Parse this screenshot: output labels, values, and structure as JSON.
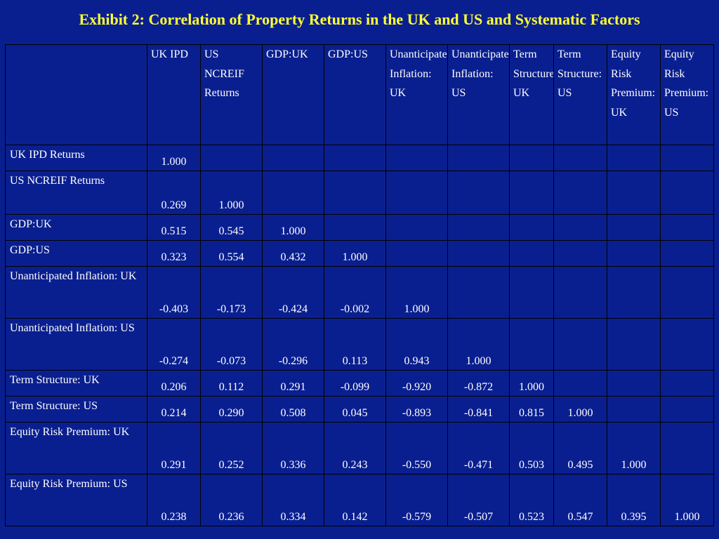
{
  "title": "Exhibit 2: Correlation of Property Returns in the UK and US and Systematic Factors",
  "columns": [
    "UK IPD",
    "US NCREIF Returns",
    "GDP:UK",
    "GDP:US",
    "Unanticipated Inflation: UK",
    "Unanticipated Inflation: US",
    "Term Structure: UK",
    "Term Structure: US",
    "Equity Risk Premium: UK",
    "Equity Risk Premium: US"
  ],
  "rows": [
    {
      "label": "UK IPD Returns",
      "values": [
        "1.000",
        "",
        "",
        "",
        "",
        "",
        "",
        "",
        "",
        ""
      ]
    },
    {
      "label": "US NCREIF Returns",
      "values": [
        "0.269",
        "1.000",
        "",
        "",
        "",
        "",
        "",
        "",
        "",
        ""
      ]
    },
    {
      "label": "GDP:UK",
      "values": [
        "0.515",
        "0.545",
        "1.000",
        "",
        "",
        "",
        "",
        "",
        "",
        ""
      ]
    },
    {
      "label": "GDP:US",
      "values": [
        "0.323",
        "0.554",
        "0.432",
        "1.000",
        "",
        "",
        "",
        "",
        "",
        ""
      ]
    },
    {
      "label": "Unanticipated Inflation: UK",
      "values": [
        "-0.403",
        "-0.173",
        "-0.424",
        "-0.002",
        "1.000",
        "",
        "",
        "",
        "",
        ""
      ]
    },
    {
      "label": "Unanticipated Inflation: US",
      "values": [
        "-0.274",
        "-0.073",
        "-0.296",
        "0.113",
        "0.943",
        "1.000",
        "",
        "",
        "",
        ""
      ]
    },
    {
      "label": "Term Structure: UK",
      "values": [
        "0.206",
        "0.112",
        "0.291",
        "-0.099",
        "-0.920",
        "-0.872",
        "1.000",
        "",
        "",
        ""
      ]
    },
    {
      "label": "Term Structure: US",
      "values": [
        "0.214",
        "0.290",
        "0.508",
        "0.045",
        "-0.893",
        "-0.841",
        "0.815",
        "1.000",
        "",
        ""
      ]
    },
    {
      "label": "Equity Risk Premium: UK",
      "values": [
        "0.291",
        "0.252",
        "0.336",
        "0.243",
        "-0.550",
        "-0.471",
        "0.503",
        "0.495",
        "1.000",
        ""
      ]
    },
    {
      "label": "Equity Risk Premium: US",
      "values": [
        "0.238",
        "0.236",
        "0.334",
        "0.142",
        "-0.579",
        "-0.507",
        "0.523",
        "0.547",
        "0.395",
        "1.000"
      ]
    }
  ],
  "colors": {
    "background": "#0a1f8f",
    "title": "#ffff33",
    "text": "#ffffff",
    "grid": "#000000"
  }
}
